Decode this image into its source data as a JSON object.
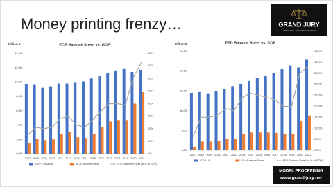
{
  "title": "Money printing frenzy…",
  "logo": {
    "name": "GRAND JURY",
    "tagline": "THE COURT OF PUBLIC OPINION"
  },
  "footer": {
    "line1": "MODEL PROCEEDING",
    "line2": "www.grand-jury.net"
  },
  "chart_data": [
    {
      "type": "bar",
      "title": "ECB Balance Sheet vs. GDP",
      "y_label": "trillion €",
      "categories": [
        "2007",
        "2008",
        "2009",
        "2010",
        "2011",
        "2012",
        "2013",
        "2014",
        "2015",
        "2016",
        "2017",
        "2018",
        "2019",
        "2020",
        "2021"
      ],
      "series": [
        {
          "name": "GDP Eurozone",
          "type": "bar",
          "color": "#4472c4",
          "values": [
            9.7,
            9.6,
            9.2,
            9.4,
            9.8,
            9.8,
            9.9,
            10.1,
            10.5,
            10.8,
            11.2,
            11.6,
            11.9,
            11.4,
            11.7
          ]
        },
        {
          "name": "ECB Balance Sheet",
          "type": "bar",
          "color": "#ed7d31",
          "values": [
            1.5,
            2.1,
            1.9,
            2.0,
            2.7,
            3.0,
            2.3,
            2.2,
            2.8,
            3.7,
            4.5,
            4.7,
            4.7,
            7.0,
            8.6
          ]
        },
        {
          "name": "ECB Balance Sheet (in % of GDP)",
          "type": "line",
          "axis": "y2",
          "color": "#a5a5a5",
          "values": [
            15,
            21,
            20,
            21,
            28,
            30,
            23,
            21,
            27,
            34,
            40,
            40,
            39,
            61,
            73
          ]
        }
      ],
      "ylim": [
        0,
        14
      ],
      "yticks": [
        {
          "value": 0,
          "label": "0,00"
        },
        {
          "value": 2,
          "label": "2,00"
        },
        {
          "value": 4,
          "label": "4,00"
        },
        {
          "value": 6,
          "label": "6,00"
        },
        {
          "value": 8,
          "label": "8,00"
        },
        {
          "value": 10,
          "label": "10,00"
        },
        {
          "value": 12,
          "label": "12,00"
        },
        {
          "value": 14,
          "label": "14,00"
        }
      ],
      "y2lim": [
        0,
        80
      ],
      "y2ticks": [
        {
          "value": 0,
          "label": "0%"
        },
        {
          "value": 10,
          "label": "10%"
        },
        {
          "value": 20,
          "label": "20%"
        },
        {
          "value": 30,
          "label": "30%"
        },
        {
          "value": 40,
          "label": "40%"
        },
        {
          "value": 50,
          "label": "50%"
        },
        {
          "value": 60,
          "label": "60%"
        },
        {
          "value": 70,
          "label": "70%"
        },
        {
          "value": 80,
          "label": "80%"
        }
      ]
    },
    {
      "type": "bar",
      "title": "FED Balance Sheet vs. GDP",
      "y_label": "trillion $",
      "categories": [
        "2007",
        "2008",
        "2009",
        "2010",
        "2011",
        "2012",
        "2013",
        "2014",
        "2015",
        "2016",
        "2017",
        "2018",
        "2019",
        "2020",
        "2021"
      ],
      "series": [
        {
          "name": "GDP US",
          "type": "bar",
          "color": "#4472c4",
          "values": [
            14.5,
            14.7,
            14.4,
            15.0,
            15.5,
            16.2,
            16.8,
            17.5,
            18.2,
            18.7,
            19.5,
            20.6,
            21.4,
            20.9,
            23.0
          ]
        },
        {
          "name": "Fed Balance Sheet",
          "type": "bar",
          "color": "#ed7d31",
          "values": [
            0.9,
            2.2,
            2.2,
            2.4,
            2.9,
            2.9,
            4.0,
            4.5,
            4.5,
            4.5,
            4.4,
            4.1,
            4.2,
            7.4,
            8.8
          ]
        },
        {
          "name": "FED Balance Sheet (in % of GDP)",
          "type": "line",
          "axis": "y2",
          "color": "#a5a5a5",
          "values": [
            6,
            15,
            15,
            16,
            19,
            18,
            24,
            26,
            25,
            24,
            23,
            20,
            20,
            35,
            38
          ]
        }
      ],
      "ylim": [
        0,
        25
      ],
      "yticks": [
        {
          "value": 0,
          "label": "0,00"
        },
        {
          "value": 5,
          "label": "5,00"
        },
        {
          "value": 10,
          "label": "10,00"
        },
        {
          "value": 15,
          "label": "15,00"
        },
        {
          "value": 20,
          "label": "20,00"
        },
        {
          "value": 25,
          "label": "25,00"
        }
      ],
      "y2lim": [
        0,
        45
      ],
      "y2ticks": [
        {
          "value": 0,
          "label": "0,0%"
        },
        {
          "value": 5,
          "label": "5,0%"
        },
        {
          "value": 10,
          "label": "10,0%"
        },
        {
          "value": 15,
          "label": "15,0%"
        },
        {
          "value": 20,
          "label": "20,0%"
        },
        {
          "value": 25,
          "label": "25,0%"
        },
        {
          "value": 30,
          "label": "30,0%"
        },
        {
          "value": 35,
          "label": "35,0%"
        },
        {
          "value": 40,
          "label": "40,0%"
        },
        {
          "value": 45,
          "label": "45,0%"
        }
      ]
    }
  ]
}
